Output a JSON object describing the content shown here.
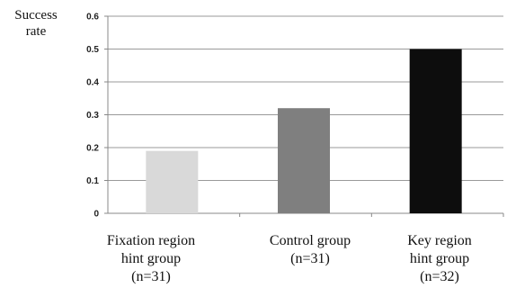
{
  "chart_data": {
    "type": "bar",
    "title": "",
    "xlabel": "",
    "ylabel": "Success rate",
    "ylabel_lines": [
      "Success",
      "rate"
    ],
    "ylim": [
      0,
      0.6
    ],
    "yticks": [
      "0",
      "0.1",
      "0.2",
      "0.3",
      "0.4",
      "0.5",
      "0.6"
    ],
    "ytick_values": [
      0,
      0.1,
      0.2,
      0.3,
      0.4,
      0.5,
      0.6
    ],
    "grid": true,
    "legend": "none",
    "categories": [
      "Fixation region hint group (n=31)",
      "Control group (n=31)",
      "Key region hint group (n=32)"
    ],
    "category_lines": [
      [
        "Fixation region",
        "hint group",
        "(n=31)"
      ],
      [
        "Control group",
        "(n=31)"
      ],
      [
        "Key region",
        "hint group",
        "(n=32)"
      ]
    ],
    "values": [
      0.19,
      0.32,
      0.5
    ],
    "colors": [
      "#d9d9d9",
      "#7f7f7f",
      "#0d0d0d"
    ]
  }
}
